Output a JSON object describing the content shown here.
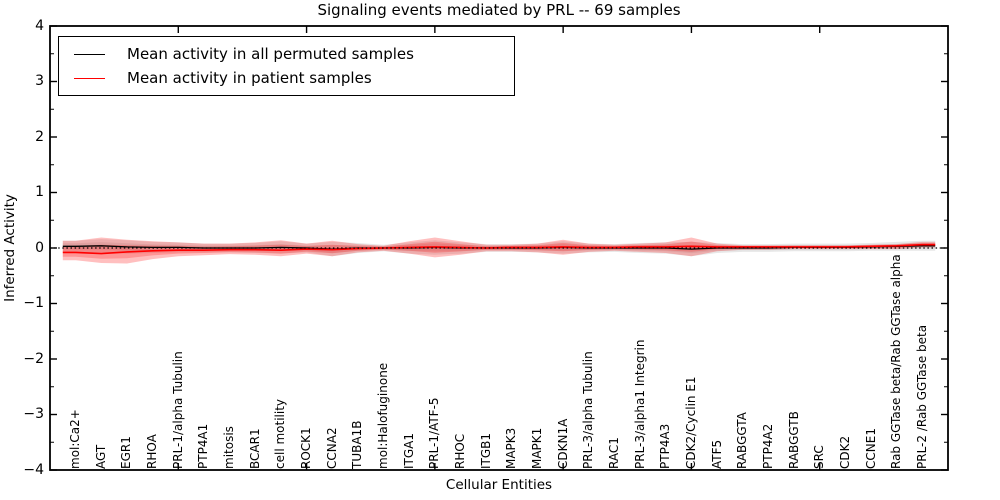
{
  "chart_data": {
    "type": "line",
    "title": "Signaling events mediated by PRL -- 69 samples",
    "xlabel": "Cellular Entities",
    "ylabel": "Inferred Activity",
    "ylim": [
      -4,
      4
    ],
    "xlim": [
      0,
      35
    ],
    "yticks": [
      4,
      3,
      2,
      1,
      0,
      -1,
      -2,
      -3,
      -4
    ],
    "ytick_labels": [
      "4",
      "3",
      "2",
      "1",
      "0",
      "−1",
      "−2",
      "−3",
      "−4"
    ],
    "ytick_minor_step": 0.5,
    "xticks_major": [
      5,
      10,
      15,
      20,
      25,
      30
    ],
    "grid": false,
    "zero_line": {
      "style": "dotted",
      "color": "#000000",
      "y": 0
    },
    "legend_position": "upper left",
    "background": "#ffffff",
    "axis_color": "#000000",
    "categories": [
      "mol:Ca2+",
      "AGT",
      "EGR1",
      "RHOA",
      "PRL-1/alpha Tubulin",
      "PTP4A1",
      "mitosis",
      "BCAR1",
      "cell motility",
      "ROCK1",
      "CCNA2",
      "TUBA1B",
      "mol:Halofuginone",
      "ITGA1",
      "PRL-1/ATF-5",
      "RHOC",
      "ITGB1",
      "MAPK3",
      "MAPK1",
      "CDKN1A",
      "PRL-3/alpha Tubulin",
      "RAC1",
      "PRL-3/alpha1 Integrin",
      "PTP4A3",
      "CDK2/Cyclin E1",
      "ATF5",
      "RABGGTA",
      "PTP4A2",
      "RABGGTB",
      "SRC",
      "CDK2",
      "CCNE1",
      "Rab GGTase beta/Rab GGTase alpha",
      "PRL-2 /Rab GGTase beta"
    ],
    "series": [
      {
        "name": "Mean activity in all permuted samples",
        "color": "#000000",
        "band_color": "#888888",
        "values": [
          0.03,
          0.04,
          0.02,
          0.01,
          0.01,
          0.0,
          0.0,
          0.0,
          0.01,
          0.0,
          -0.02,
          0.0,
          0.0,
          0.0,
          0.01,
          0.0,
          0.0,
          0.0,
          0.0,
          0.01,
          0.0,
          0.0,
          0.0,
          0.0,
          -0.02,
          0.0,
          0.0,
          0.0,
          0.01,
          0.01,
          0.01,
          0.02,
          0.03,
          0.04
        ],
        "band_upper": [
          0.13,
          0.16,
          0.14,
          0.11,
          0.1,
          0.08,
          0.08,
          0.09,
          0.12,
          0.08,
          0.11,
          0.09,
          0.06,
          0.1,
          0.14,
          0.1,
          0.07,
          0.07,
          0.08,
          0.12,
          0.08,
          0.07,
          0.09,
          0.1,
          0.11,
          0.09,
          0.07,
          0.07,
          0.08,
          0.08,
          0.08,
          0.09,
          0.11,
          0.13
        ],
        "band_lower": [
          -0.07,
          -0.08,
          -0.1,
          -0.09,
          -0.08,
          -0.08,
          -0.08,
          -0.09,
          -0.1,
          -0.08,
          -0.15,
          -0.09,
          -0.06,
          -0.1,
          -0.12,
          -0.1,
          -0.07,
          -0.07,
          -0.08,
          -0.1,
          -0.08,
          -0.07,
          -0.09,
          -0.1,
          -0.15,
          -0.09,
          -0.07,
          -0.07,
          -0.06,
          -0.06,
          -0.06,
          -0.05,
          -0.05,
          -0.05
        ]
      },
      {
        "name": "Mean activity in patient samples",
        "color": "#ff0000",
        "band_color": "#ff0000",
        "values": [
          -0.08,
          -0.1,
          -0.07,
          -0.05,
          -0.04,
          -0.04,
          -0.03,
          -0.03,
          -0.04,
          -0.02,
          -0.03,
          -0.01,
          0.0,
          0.01,
          0.02,
          0.01,
          0.0,
          0.01,
          0.01,
          0.02,
          0.01,
          0.01,
          0.02,
          0.02,
          0.03,
          0.02,
          0.02,
          0.02,
          0.02,
          0.02,
          0.02,
          0.03,
          0.04,
          0.06
        ],
        "band_upper": [
          0.13,
          0.19,
          0.15,
          0.12,
          0.1,
          0.08,
          0.08,
          0.1,
          0.14,
          0.08,
          0.13,
          0.07,
          0.04,
          0.12,
          0.19,
          0.12,
          0.06,
          0.06,
          0.08,
          0.15,
          0.08,
          0.06,
          0.08,
          0.1,
          0.19,
          0.08,
          0.05,
          0.05,
          0.05,
          0.05,
          0.05,
          0.06,
          0.07,
          0.11
        ],
        "band_lower": [
          -0.22,
          -0.27,
          -0.28,
          -0.2,
          -0.15,
          -0.13,
          -0.11,
          -0.12,
          -0.15,
          -0.1,
          -0.15,
          -0.08,
          -0.05,
          -0.1,
          -0.17,
          -0.12,
          -0.06,
          -0.06,
          -0.08,
          -0.12,
          -0.07,
          -0.05,
          -0.07,
          -0.09,
          -0.15,
          -0.06,
          -0.03,
          -0.03,
          -0.02,
          -0.02,
          -0.02,
          -0.02,
          -0.02,
          0.01
        ]
      }
    ]
  }
}
